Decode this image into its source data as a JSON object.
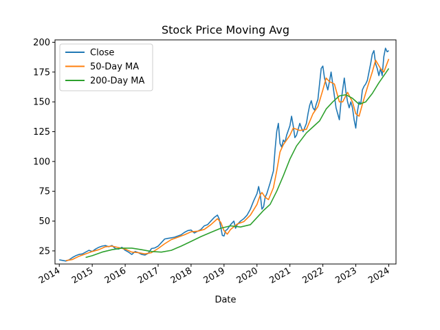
{
  "chart_data": {
    "type": "line",
    "title": "Stock Price Moving Avg",
    "xlabel": "Date",
    "ylabel": "",
    "xlim": [
      2013.87,
      2024.22
    ],
    "ylim": [
      14,
      202
    ],
    "x_ticks": [
      2014,
      2015,
      2016,
      2017,
      2018,
      2019,
      2020,
      2021,
      2022,
      2023,
      2024
    ],
    "x_tick_labels": [
      "2014",
      "2015",
      "2016",
      "2017",
      "2018",
      "2019",
      "2020",
      "2021",
      "2022",
      "2023",
      "2024"
    ],
    "y_ticks": [
      25,
      50,
      75,
      100,
      125,
      150,
      175,
      200
    ],
    "y_tick_labels": [
      "25",
      "50",
      "75",
      "100",
      "125",
      "150",
      "175",
      "200"
    ],
    "grid": false,
    "legend_position": "top-left",
    "series": [
      {
        "name": "Close",
        "color": "#1f77b4",
        "points": [
          [
            2014.0,
            17.5
          ],
          [
            2014.1,
            17.0
          ],
          [
            2014.2,
            16.5
          ],
          [
            2014.3,
            17.5
          ],
          [
            2014.4,
            19.5
          ],
          [
            2014.5,
            21.0
          ],
          [
            2014.6,
            22.0
          ],
          [
            2014.7,
            22.5
          ],
          [
            2014.8,
            24.0
          ],
          [
            2014.9,
            25.5
          ],
          [
            2015.0,
            24.5
          ],
          [
            2015.1,
            26.5
          ],
          [
            2015.2,
            28.0
          ],
          [
            2015.3,
            29.0
          ],
          [
            2015.4,
            29.5
          ],
          [
            2015.5,
            28.5
          ],
          [
            2015.6,
            29.5
          ],
          [
            2015.7,
            27.0
          ],
          [
            2015.8,
            26.5
          ],
          [
            2015.9,
            28.0
          ],
          [
            2016.0,
            25.5
          ],
          [
            2016.1,
            24.0
          ],
          [
            2016.2,
            22.0
          ],
          [
            2016.3,
            24.5
          ],
          [
            2016.4,
            23.5
          ],
          [
            2016.5,
            22.0
          ],
          [
            2016.6,
            21.5
          ],
          [
            2016.7,
            23.0
          ],
          [
            2016.8,
            27.0
          ],
          [
            2016.9,
            27.5
          ],
          [
            2017.0,
            29.0
          ],
          [
            2017.1,
            32.0
          ],
          [
            2017.2,
            35.0
          ],
          [
            2017.3,
            35.5
          ],
          [
            2017.4,
            36.0
          ],
          [
            2017.5,
            36.5
          ],
          [
            2017.6,
            37.5
          ],
          [
            2017.7,
            38.5
          ],
          [
            2017.8,
            40.5
          ],
          [
            2017.9,
            42.0
          ],
          [
            2018.0,
            42.5
          ],
          [
            2018.1,
            40.0
          ],
          [
            2018.2,
            41.5
          ],
          [
            2018.3,
            43.0
          ],
          [
            2018.4,
            46.0
          ],
          [
            2018.5,
            47.0
          ],
          [
            2018.6,
            50.0
          ],
          [
            2018.7,
            53.0
          ],
          [
            2018.8,
            55.0
          ],
          [
            2018.85,
            52.0
          ],
          [
            2018.9,
            45.0
          ],
          [
            2018.95,
            38.0
          ],
          [
            2019.0,
            37.5
          ],
          [
            2019.05,
            42.0
          ],
          [
            2019.1,
            43.0
          ],
          [
            2019.2,
            47.0
          ],
          [
            2019.3,
            50.0
          ],
          [
            2019.35,
            44.0
          ],
          [
            2019.4,
            47.0
          ],
          [
            2019.5,
            50.0
          ],
          [
            2019.6,
            52.0
          ],
          [
            2019.7,
            55.0
          ],
          [
            2019.8,
            60.0
          ],
          [
            2019.9,
            67.0
          ],
          [
            2020.0,
            73.0
          ],
          [
            2020.05,
            79.0
          ],
          [
            2020.1,
            72.0
          ],
          [
            2020.15,
            60.0
          ],
          [
            2020.2,
            62.0
          ],
          [
            2020.25,
            70.0
          ],
          [
            2020.3,
            73.0
          ],
          [
            2020.4,
            82.0
          ],
          [
            2020.5,
            92.0
          ],
          [
            2020.55,
            110.0
          ],
          [
            2020.6,
            125.0
          ],
          [
            2020.65,
            132.0
          ],
          [
            2020.7,
            115.0
          ],
          [
            2020.75,
            112.0
          ],
          [
            2020.8,
            118.0
          ],
          [
            2020.85,
            116.0
          ],
          [
            2020.9,
            122.0
          ],
          [
            2021.0,
            130.0
          ],
          [
            2021.05,
            138.0
          ],
          [
            2021.1,
            130.0
          ],
          [
            2021.15,
            120.0
          ],
          [
            2021.2,
            122.0
          ],
          [
            2021.3,
            132.0
          ],
          [
            2021.35,
            128.0
          ],
          [
            2021.4,
            125.0
          ],
          [
            2021.5,
            132.0
          ],
          [
            2021.55,
            140.0
          ],
          [
            2021.6,
            147.0
          ],
          [
            2021.65,
            151.0
          ],
          [
            2021.7,
            145.0
          ],
          [
            2021.75,
            143.0
          ],
          [
            2021.8,
            148.0
          ],
          [
            2021.85,
            152.0
          ],
          [
            2021.9,
            165.0
          ],
          [
            2021.95,
            178.0
          ],
          [
            2022.0,
            180.0
          ],
          [
            2022.05,
            170.0
          ],
          [
            2022.1,
            165.0
          ],
          [
            2022.15,
            160.0
          ],
          [
            2022.2,
            167.0
          ],
          [
            2022.25,
            175.0
          ],
          [
            2022.3,
            165.0
          ],
          [
            2022.35,
            155.0
          ],
          [
            2022.4,
            145.0
          ],
          [
            2022.45,
            140.0
          ],
          [
            2022.5,
            135.0
          ],
          [
            2022.55,
            150.0
          ],
          [
            2022.6,
            160.0
          ],
          [
            2022.65,
            170.0
          ],
          [
            2022.7,
            158.0
          ],
          [
            2022.75,
            150.0
          ],
          [
            2022.8,
            145.0
          ],
          [
            2022.85,
            150.0
          ],
          [
            2022.9,
            145.0
          ],
          [
            2022.95,
            135.0
          ],
          [
            2023.0,
            128.0
          ],
          [
            2023.05,
            142.0
          ],
          [
            2023.1,
            150.0
          ],
          [
            2023.15,
            148.0
          ],
          [
            2023.2,
            160.0
          ],
          [
            2023.25,
            163.0
          ],
          [
            2023.3,
            165.0
          ],
          [
            2023.35,
            168.0
          ],
          [
            2023.4,
            175.0
          ],
          [
            2023.45,
            182.0
          ],
          [
            2023.5,
            190.0
          ],
          [
            2023.55,
            193.0
          ],
          [
            2023.6,
            182.0
          ],
          [
            2023.65,
            178.0
          ],
          [
            2023.7,
            172.0
          ],
          [
            2023.75,
            178.0
          ],
          [
            2023.8,
            172.0
          ],
          [
            2023.85,
            188.0
          ],
          [
            2023.9,
            195.0
          ],
          [
            2023.95,
            192.0
          ],
          [
            2024.0,
            193.0
          ]
        ]
      },
      {
        "name": "50-Day MA",
        "color": "#ff7f0e",
        "points": [
          [
            2014.2,
            16.8
          ],
          [
            2014.4,
            17.8
          ],
          [
            2014.6,
            20.5
          ],
          [
            2014.8,
            22.5
          ],
          [
            2015.0,
            24.5
          ],
          [
            2015.2,
            26.0
          ],
          [
            2015.4,
            28.5
          ],
          [
            2015.6,
            29.0
          ],
          [
            2015.8,
            27.8
          ],
          [
            2016.0,
            26.5
          ],
          [
            2016.2,
            24.0
          ],
          [
            2016.4,
            23.5
          ],
          [
            2016.6,
            22.5
          ],
          [
            2016.8,
            23.5
          ],
          [
            2017.0,
            27.0
          ],
          [
            2017.2,
            31.0
          ],
          [
            2017.4,
            34.5
          ],
          [
            2017.6,
            36.5
          ],
          [
            2017.8,
            38.5
          ],
          [
            2018.0,
            41.0
          ],
          [
            2018.2,
            41.5
          ],
          [
            2018.4,
            43.0
          ],
          [
            2018.6,
            47.0
          ],
          [
            2018.8,
            52.0
          ],
          [
            2018.9,
            49.0
          ],
          [
            2019.0,
            42.0
          ],
          [
            2019.1,
            39.0
          ],
          [
            2019.2,
            43.0
          ],
          [
            2019.4,
            47.5
          ],
          [
            2019.6,
            49.5
          ],
          [
            2019.8,
            55.0
          ],
          [
            2020.0,
            64.0
          ],
          [
            2020.1,
            72.0
          ],
          [
            2020.15,
            74.0
          ],
          [
            2020.25,
            70.0
          ],
          [
            2020.35,
            68.0
          ],
          [
            2020.5,
            78.0
          ],
          [
            2020.6,
            92.0
          ],
          [
            2020.7,
            108.0
          ],
          [
            2020.8,
            114.0
          ],
          [
            2021.0,
            122.0
          ],
          [
            2021.1,
            128.0
          ],
          [
            2021.3,
            126.0
          ],
          [
            2021.5,
            127.0
          ],
          [
            2021.7,
            140.0
          ],
          [
            2021.85,
            146.0
          ],
          [
            2022.0,
            160.0
          ],
          [
            2022.1,
            170.0
          ],
          [
            2022.2,
            167.0
          ],
          [
            2022.35,
            165.0
          ],
          [
            2022.5,
            150.0
          ],
          [
            2022.6,
            150.0
          ],
          [
            2022.75,
            158.0
          ],
          [
            2022.9,
            150.0
          ],
          [
            2023.0,
            140.0
          ],
          [
            2023.1,
            138.0
          ],
          [
            2023.2,
            148.0
          ],
          [
            2023.35,
            162.0
          ],
          [
            2023.5,
            175.0
          ],
          [
            2023.6,
            185.0
          ],
          [
            2023.75,
            178.0
          ],
          [
            2023.85,
            175.0
          ],
          [
            2024.0,
            186.0
          ]
        ]
      },
      {
        "name": "200-Day MA",
        "color": "#2ca02c",
        "points": [
          [
            2014.8,
            19.5
          ],
          [
            2015.0,
            21.0
          ],
          [
            2015.3,
            24.0
          ],
          [
            2015.6,
            26.0
          ],
          [
            2015.9,
            27.3
          ],
          [
            2016.2,
            27.3
          ],
          [
            2016.5,
            26.0
          ],
          [
            2016.8,
            24.5
          ],
          [
            2017.1,
            24.0
          ],
          [
            2017.4,
            25.5
          ],
          [
            2017.7,
            29.0
          ],
          [
            2018.0,
            33.0
          ],
          [
            2018.3,
            37.0
          ],
          [
            2018.6,
            40.5
          ],
          [
            2018.9,
            44.0
          ],
          [
            2019.2,
            46.0
          ],
          [
            2019.5,
            45.0
          ],
          [
            2019.8,
            47.0
          ],
          [
            2020.0,
            53.0
          ],
          [
            2020.2,
            59.0
          ],
          [
            2020.4,
            64.0
          ],
          [
            2020.6,
            75.0
          ],
          [
            2020.8,
            88.0
          ],
          [
            2021.0,
            102.0
          ],
          [
            2021.2,
            113.0
          ],
          [
            2021.5,
            124.0
          ],
          [
            2021.7,
            129.0
          ],
          [
            2021.9,
            134.0
          ],
          [
            2022.1,
            144.0
          ],
          [
            2022.3,
            150.0
          ],
          [
            2022.5,
            155.0
          ],
          [
            2022.7,
            156.0
          ],
          [
            2022.9,
            153.0
          ],
          [
            2023.1,
            148.0
          ],
          [
            2023.3,
            150.0
          ],
          [
            2023.5,
            157.0
          ],
          [
            2023.7,
            166.0
          ],
          [
            2023.9,
            174.0
          ],
          [
            2024.0,
            178.0
          ]
        ]
      }
    ]
  }
}
